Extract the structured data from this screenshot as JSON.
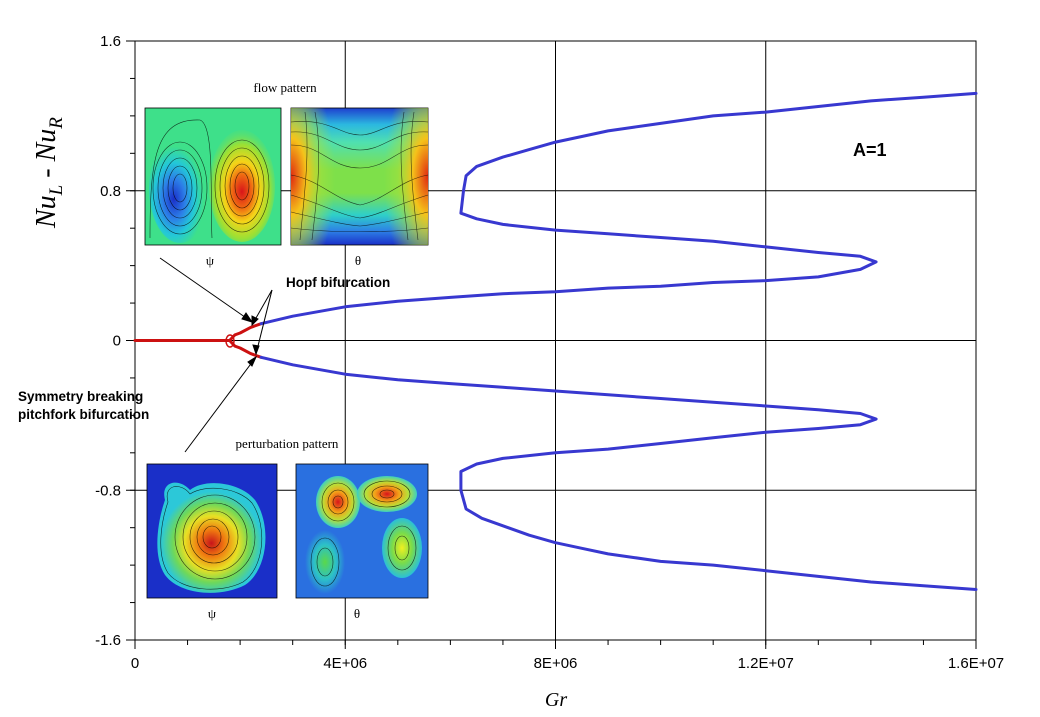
{
  "chart_data": {
    "type": "line",
    "title": "",
    "xlabel": "Gr",
    "ylabel": {
      "main": "Nu",
      "sub_left": "L",
      "sep": " - ",
      "main2": "Nu",
      "sub_right": "R"
    },
    "xlim": [
      0,
      16000000
    ],
    "ylim": [
      -1.6,
      1.6
    ],
    "x_ticks": [
      {
        "value": 0,
        "label": "0"
      },
      {
        "value": 4000000,
        "label": "4E+06"
      },
      {
        "value": 8000000,
        "label": "8E+06"
      },
      {
        "value": 12000000,
        "label": "1.2E+07"
      },
      {
        "value": 16000000,
        "label": "1.6E+07"
      }
    ],
    "x_minor_step": 1000000,
    "y_ticks": [
      {
        "value": 1.6,
        "label": "1.6"
      },
      {
        "value": 0.8,
        "label": "0.8"
      },
      {
        "value": 0,
        "label": "0"
      },
      {
        "value": -0.8,
        "label": "-0.8"
      },
      {
        "value": -1.6,
        "label": "-1.6"
      }
    ],
    "y_minor_step": 0.2,
    "grid": true,
    "series": [
      {
        "color": "#cc1111",
        "points": [
          [
            0,
            0
          ],
          [
            1800000,
            0
          ]
        ]
      },
      {
        "color": "#cc1111",
        "points": [
          [
            1800000,
            0
          ],
          [
            1900000,
            0.03
          ],
          [
            2000000,
            0.04
          ],
          [
            2200000,
            0.07
          ],
          [
            2400000,
            0.09
          ]
        ]
      },
      {
        "color": "#cc1111",
        "points": [
          [
            1800000,
            0
          ],
          [
            1900000,
            -0.03
          ],
          [
            2000000,
            -0.04
          ],
          [
            2200000,
            -0.07
          ],
          [
            2400000,
            -0.09
          ]
        ]
      },
      {
        "color": "#3838d0",
        "points": [
          [
            2400000,
            0.09
          ],
          [
            3000000,
            0.13
          ],
          [
            4000000,
            0.18
          ],
          [
            5000000,
            0.21
          ],
          [
            6000000,
            0.23
          ],
          [
            7000000,
            0.25
          ],
          [
            8000000,
            0.26
          ],
          [
            9000000,
            0.28
          ],
          [
            10000000,
            0.29
          ],
          [
            11000000,
            0.31
          ],
          [
            12000000,
            0.32
          ],
          [
            13000000,
            0.34
          ],
          [
            13800000,
            0.38
          ],
          [
            14100000,
            0.42
          ],
          [
            13800000,
            0.45
          ],
          [
            13000000,
            0.47
          ],
          [
            12000000,
            0.5
          ],
          [
            11000000,
            0.53
          ],
          [
            10000000,
            0.55
          ],
          [
            9000000,
            0.57
          ],
          [
            8000000,
            0.59
          ],
          [
            7000000,
            0.62
          ],
          [
            6500000,
            0.65
          ],
          [
            6200000,
            0.68
          ],
          [
            6250000,
            0.8
          ],
          [
            6300000,
            0.88
          ],
          [
            6500000,
            0.93
          ],
          [
            7000000,
            0.98
          ],
          [
            7500000,
            1.02
          ],
          [
            8000000,
            1.06
          ],
          [
            8500000,
            1.09
          ],
          [
            9000000,
            1.12
          ],
          [
            9500000,
            1.14
          ],
          [
            10000000,
            1.16
          ],
          [
            10500000,
            1.18
          ],
          [
            11000000,
            1.2
          ],
          [
            12000000,
            1.22
          ],
          [
            13000000,
            1.25
          ],
          [
            14000000,
            1.28
          ],
          [
            15000000,
            1.3
          ],
          [
            16000000,
            1.32
          ]
        ]
      },
      {
        "color": "#3838d0",
        "points": [
          [
            2400000,
            -0.09
          ],
          [
            3000000,
            -0.13
          ],
          [
            4000000,
            -0.18
          ],
          [
            5000000,
            -0.21
          ],
          [
            6000000,
            -0.23
          ],
          [
            7000000,
            -0.25
          ],
          [
            8000000,
            -0.27
          ],
          [
            9000000,
            -0.29
          ],
          [
            10000000,
            -0.31
          ],
          [
            11000000,
            -0.33
          ],
          [
            12000000,
            -0.35
          ],
          [
            13000000,
            -0.37
          ],
          [
            13800000,
            -0.39
          ],
          [
            14100000,
            -0.42
          ],
          [
            13800000,
            -0.45
          ],
          [
            13000000,
            -0.47
          ],
          [
            12000000,
            -0.49
          ],
          [
            11000000,
            -0.52
          ],
          [
            10000000,
            -0.55
          ],
          [
            9000000,
            -0.58
          ],
          [
            8000000,
            -0.6
          ],
          [
            7000000,
            -0.63
          ],
          [
            6500000,
            -0.66
          ],
          [
            6200000,
            -0.7
          ],
          [
            6200000,
            -0.8
          ],
          [
            6300000,
            -0.9
          ],
          [
            6600000,
            -0.95
          ],
          [
            7000000,
            -0.99
          ],
          [
            7500000,
            -1.04
          ],
          [
            8000000,
            -1.08
          ],
          [
            8500000,
            -1.11
          ],
          [
            9000000,
            -1.14
          ],
          [
            9500000,
            -1.16
          ],
          [
            10000000,
            -1.18
          ],
          [
            11000000,
            -1.2
          ],
          [
            12000000,
            -1.23
          ],
          [
            13000000,
            -1.26
          ],
          [
            14000000,
            -1.29
          ],
          [
            15000000,
            -1.31
          ],
          [
            16000000,
            -1.33
          ]
        ]
      }
    ],
    "annotations": {
      "aspect": "A=1",
      "hopf": "Hopf bifurcation",
      "pitchfork_line1": "Symmetry breaking",
      "pitchfork_line2": "pitchfork bifurcation",
      "flow_title": "flow pattern",
      "perturbation_title": "perturbation pattern",
      "psi": "ψ",
      "theta": "θ"
    }
  }
}
